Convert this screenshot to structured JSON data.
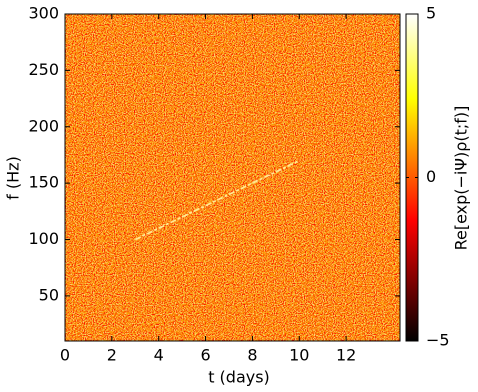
{
  "chart_data": {
    "type": "heatmap",
    "x_label": "t (days)",
    "y_label": "f (Hz)",
    "colorbar_label": "Re[exp(−iΨ)ρ(t;f)]",
    "colormap": "hot",
    "xlim": [
      0,
      14.3
    ],
    "xticks": [
      0,
      2,
      4,
      6,
      8,
      10,
      12
    ],
    "ylim": [
      10,
      300
    ],
    "yticks": [
      50,
      100,
      150,
      200,
      250,
      300
    ],
    "clim": [
      -5,
      5
    ],
    "cticks": [
      {
        "value": -5,
        "label": "−5"
      },
      0,
      5
    ],
    "track": {
      "x": [
        3,
        10
      ],
      "y": [
        100,
        170
      ],
      "color": "#fff2a0"
    }
  }
}
